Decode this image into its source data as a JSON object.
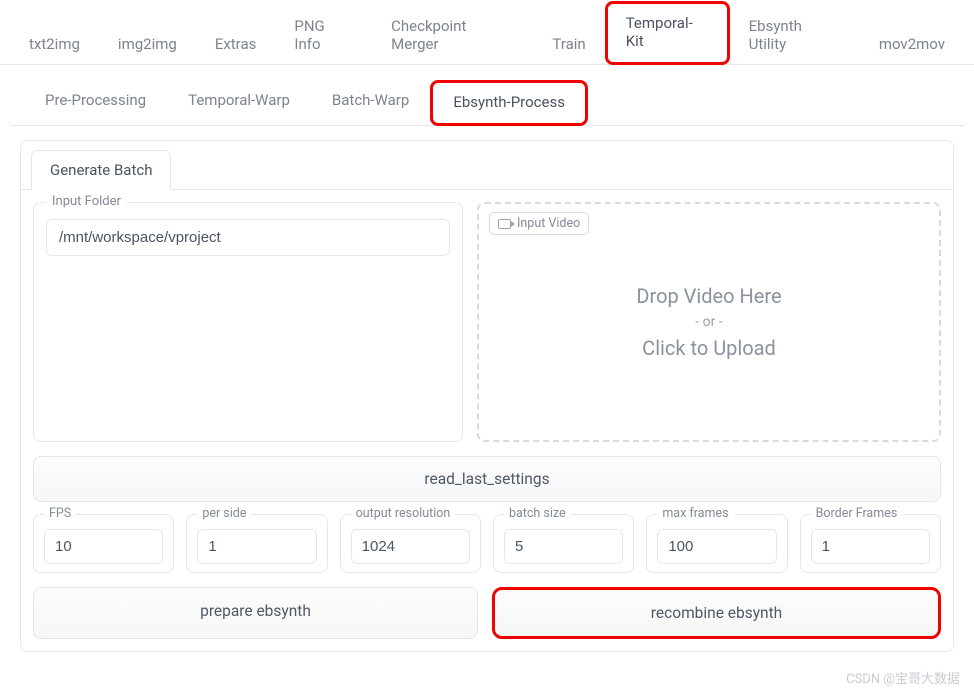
{
  "colors": {
    "highlight": "#ee0202",
    "border": "#e5e7eb",
    "text_muted": "#7c848e",
    "text_active": "#4a5360"
  },
  "topTabs": {
    "items": [
      {
        "label": "txt2img"
      },
      {
        "label": "img2img"
      },
      {
        "label": "Extras"
      },
      {
        "label": "PNG Info"
      },
      {
        "label": "Checkpoint Merger"
      },
      {
        "label": "Train"
      },
      {
        "label": "Temporal-Kit"
      },
      {
        "label": "Ebsynth Utility"
      },
      {
        "label": "mov2mov"
      }
    ],
    "activeIndex": 6,
    "highlightedIndex": 6
  },
  "subTabs": {
    "items": [
      {
        "label": "Pre-Processing"
      },
      {
        "label": "Temporal-Warp"
      },
      {
        "label": "Batch-Warp"
      },
      {
        "label": "Ebsynth-Process"
      }
    ],
    "activeIndex": 3,
    "highlightedIndex": 3
  },
  "innerTab": {
    "label": "Generate Batch"
  },
  "inputFolder": {
    "legend": "Input Folder",
    "value": "/mnt/workspace/vproject"
  },
  "videoDrop": {
    "badge": "Input Video",
    "line1": "Drop Video Here",
    "line2": "- or -",
    "line3": "Click to Upload"
  },
  "readLastBtn": "read_last_settings",
  "params": [
    {
      "label": "FPS",
      "value": "10"
    },
    {
      "label": "per side",
      "value": "1"
    },
    {
      "label": "output resolution",
      "value": "1024"
    },
    {
      "label": "batch size",
      "value": "5"
    },
    {
      "label": "max frames",
      "value": "100"
    },
    {
      "label": "Border Frames",
      "value": "1"
    }
  ],
  "actions": {
    "prepare": "prepare ebsynth",
    "recombine": "recombine ebsynth",
    "highlighted": "recombine"
  },
  "watermark": "CSDN @宝哥大数据"
}
